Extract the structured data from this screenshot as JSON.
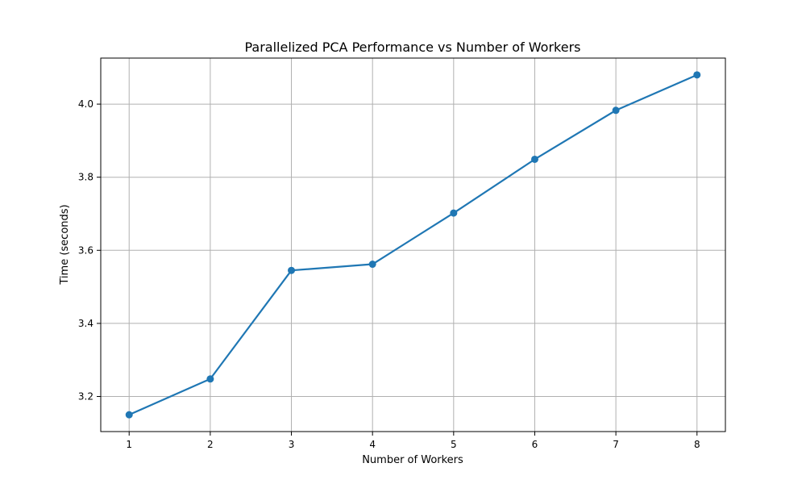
{
  "chart_data": {
    "type": "line",
    "title": "Parallelized PCA Performance vs Number of Workers",
    "xlabel": "Number of Workers",
    "ylabel": "Time (seconds)",
    "x": [
      1,
      2,
      3,
      4,
      5,
      6,
      7,
      8
    ],
    "series": [
      {
        "values": [
          3.15,
          3.248,
          3.545,
          3.562,
          3.702,
          3.849,
          3.983,
          4.08
        ],
        "color": "#1f77b4",
        "marker": "circle"
      }
    ],
    "x_ticks": [
      "1",
      "2",
      "3",
      "4",
      "5",
      "6",
      "7",
      "8"
    ],
    "y_ticks": [
      "3.2",
      "3.4",
      "3.6",
      "3.8",
      "4.0"
    ],
    "xlim": [
      0.65,
      8.35
    ],
    "ylim": [
      3.104,
      4.126
    ],
    "grid": true
  }
}
